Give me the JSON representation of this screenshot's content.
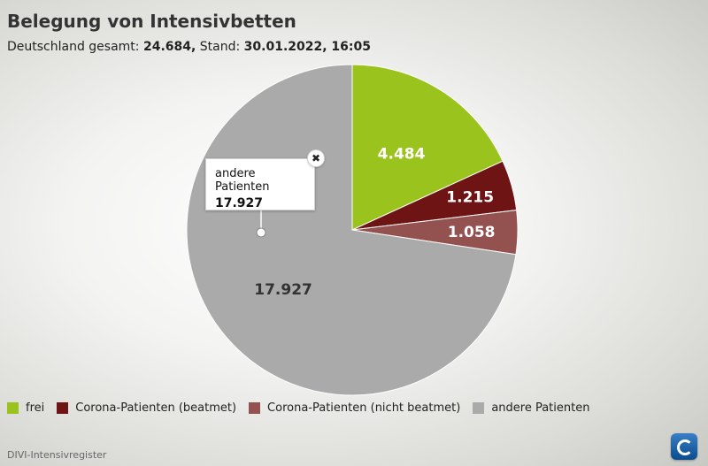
{
  "title": "Belegung von Intensivbetten",
  "subtitle": {
    "prefix": "Deutschland gesamt: ",
    "total": "24.684,",
    "stand_label": " Stand: ",
    "stand_value": "30.01.2022, 16:05"
  },
  "source": "DIVI-Intensivregister",
  "tooltip": {
    "label": "andere Patienten",
    "value": "17.927",
    "close_symbol": "✖"
  },
  "chart_data": {
    "type": "pie",
    "title": "Belegung von Intensivbetten",
    "legend_position": "bottom-left",
    "slices": [
      {
        "name": "frei",
        "value": 4484,
        "label": "4.484",
        "color": "#9bc31e"
      },
      {
        "name": "Corona-Patienten (beatmet)",
        "value": 1215,
        "label": "1.215",
        "color": "#6e1414"
      },
      {
        "name": "Corona-Patienten (nicht beatmet)",
        "value": 1058,
        "label": "1.058",
        "color": "#935250"
      },
      {
        "name": "andere Patienten",
        "value": 17927,
        "label": "17.927",
        "color": "#aaaaaa"
      }
    ]
  }
}
